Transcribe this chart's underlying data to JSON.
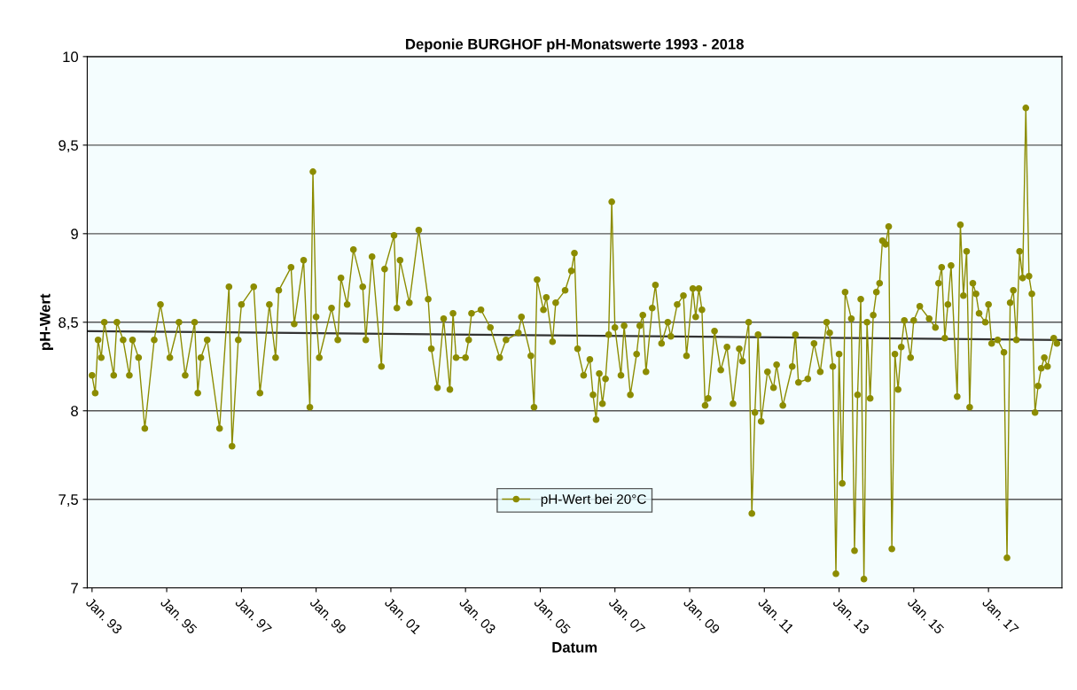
{
  "chart_data": {
    "type": "line",
    "title": "Deponie BURGHOF pH-Monatswerte 1993 - 2018",
    "xlabel": "Datum",
    "ylabel": "pH-Wert",
    "xlim": [
      "1992-11-15",
      "2018-12-20"
    ],
    "xticks": [
      {
        "value": "1993-01",
        "label": "Jan. 93"
      },
      {
        "value": "1995-01",
        "label": "Jan. 95"
      },
      {
        "value": "1997-01",
        "label": "Jan. 97"
      },
      {
        "value": "1999-01",
        "label": "Jan. 99"
      },
      {
        "value": "2001-01",
        "label": "Jan. 01"
      },
      {
        "value": "2003-01",
        "label": "Jan. 03"
      },
      {
        "value": "2005-01",
        "label": "Jan. 05"
      },
      {
        "value": "2007-01",
        "label": "Jan. 07"
      },
      {
        "value": "2009-01",
        "label": "Jan. 09"
      },
      {
        "value": "2011-01",
        "label": "Jan. 11"
      },
      {
        "value": "2013-01",
        "label": "Jan. 13"
      },
      {
        "value": "2015-01",
        "label": "Jan. 15"
      },
      {
        "value": "2017-01",
        "label": "Jan. 17"
      }
    ],
    "ylim": [
      7,
      10
    ],
    "yticks": [
      7,
      {
        "value": 7.5,
        "label": "7,5"
      },
      8,
      {
        "value": 8.5,
        "label": "8,5"
      },
      9,
      {
        "value": 9.5,
        "label": "9,5"
      },
      10
    ],
    "grid": "y",
    "legend": "bottom",
    "marker": "circle",
    "line_style": "solid",
    "series": [
      {
        "name": "pH-Wert bei 20°C",
        "color": "#8c8c00",
        "x": [
          "1993-01",
          "1993-02",
          "1993-03",
          "1993-04",
          "1993-05",
          "1993-08",
          "1993-09",
          "1993-11",
          "1994-01",
          "1994-02",
          "1994-04",
          "1994-06",
          "1994-09",
          "1994-11",
          "1995-02",
          "1995-05",
          "1995-07",
          "1995-10",
          "1995-11",
          "1995-12",
          "1996-02",
          "1996-06",
          "1996-09",
          "1996-10",
          "1996-12",
          "1997-01",
          "1997-05",
          "1997-07",
          "1997-10",
          "1997-12",
          "1998-01",
          "1998-05",
          "1998-06",
          "1998-09",
          "1998-11",
          "1998-12",
          "1999-01",
          "1999-02",
          "1999-06",
          "1999-08",
          "1999-09",
          "1999-11",
          "2000-01",
          "2000-04",
          "2000-05",
          "2000-07",
          "2000-10",
          "2000-11",
          "2001-02",
          "2001-03",
          "2001-04",
          "2001-07",
          "2001-10",
          "2002-01",
          "2002-02",
          "2002-04",
          "2002-06",
          "2002-08",
          "2002-09",
          "2002-10",
          "2003-01",
          "2003-02",
          "2003-03",
          "2003-06",
          "2003-09",
          "2003-12",
          "2004-02",
          "2004-06",
          "2004-07",
          "2004-10",
          "2004-11",
          "2004-12",
          "2005-02",
          "2005-03",
          "2005-05",
          "2005-06",
          "2005-09",
          "2005-11",
          "2005-12",
          "2006-01",
          "2006-03",
          "2006-05",
          "2006-06",
          "2006-07",
          "2006-08",
          "2006-09",
          "2006-10",
          "2006-11",
          "2006-12",
          "2007-01",
          "2007-03",
          "2007-04",
          "2007-06",
          "2007-08",
          "2007-09",
          "2007-10",
          "2007-11",
          "2008-01",
          "2008-02",
          "2008-04",
          "2008-06",
          "2008-07",
          "2008-09",
          "2008-11",
          "2008-12",
          "2009-02",
          "2009-03",
          "2009-04",
          "2009-05",
          "2009-06",
          "2009-07",
          "2009-09",
          "2009-11",
          "2010-01",
          "2010-03",
          "2010-05",
          "2010-06",
          "2010-08",
          "2010-09",
          "2010-10",
          "2010-11",
          "2010-12",
          "2011-02",
          "2011-04",
          "2011-05",
          "2011-07",
          "2011-10",
          "2011-11",
          "2011-12",
          "2012-03",
          "2012-05",
          "2012-07",
          "2012-09",
          "2012-10",
          "2012-11",
          "2012-12",
          "2013-01",
          "2013-02",
          "2013-03",
          "2013-05",
          "2013-06",
          "2013-07",
          "2013-08",
          "2013-09",
          "2013-10",
          "2013-11",
          "2013-12",
          "2014-01",
          "2014-02",
          "2014-03",
          "2014-04",
          "2014-05",
          "2014-06",
          "2014-07",
          "2014-08",
          "2014-09",
          "2014-10",
          "2014-12",
          "2015-01",
          "2015-03",
          "2015-06",
          "2015-08",
          "2015-09",
          "2015-10",
          "2015-11",
          "2015-12",
          "2016-01",
          "2016-03",
          "2016-04",
          "2016-05",
          "2016-06",
          "2016-07",
          "2016-08",
          "2016-09",
          "2016-10",
          "2016-12",
          "2017-01",
          "2017-02",
          "2017-04",
          "2017-06",
          "2017-07",
          "2017-08",
          "2017-09",
          "2017-10",
          "2017-11",
          "2017-12",
          "2018-01",
          "2018-02",
          "2018-03",
          "2018-04",
          "2018-05",
          "2018-06",
          "2018-07",
          "2018-08",
          "2018-10",
          "2018-11"
        ],
        "values": [
          8.2,
          8.1,
          8.4,
          8.3,
          8.5,
          8.2,
          8.5,
          8.4,
          8.2,
          8.4,
          8.3,
          7.9,
          8.4,
          8.6,
          8.3,
          8.5,
          8.2,
          8.5,
          8.1,
          8.3,
          8.4,
          7.9,
          8.7,
          7.8,
          8.4,
          8.6,
          8.7,
          8.1,
          8.6,
          8.3,
          8.68,
          8.81,
          8.49,
          8.85,
          8.02,
          9.35,
          8.53,
          8.3,
          8.58,
          8.4,
          8.75,
          8.6,
          8.91,
          8.7,
          8.4,
          8.87,
          8.25,
          8.8,
          8.99,
          8.58,
          8.85,
          8.61,
          9.02,
          8.63,
          8.35,
          8.13,
          8.52,
          8.12,
          8.55,
          8.3,
          8.3,
          8.4,
          8.55,
          8.57,
          8.47,
          8.3,
          8.4,
          8.44,
          8.53,
          8.31,
          8.02,
          8.74,
          8.57,
          8.64,
          8.39,
          8.61,
          8.68,
          8.79,
          8.89,
          8.35,
          8.2,
          8.29,
          8.09,
          7.95,
          8.21,
          8.04,
          8.18,
          8.43,
          9.18,
          8.47,
          8.2,
          8.48,
          8.09,
          8.32,
          8.48,
          8.54,
          8.22,
          8.58,
          8.71,
          8.38,
          8.5,
          8.42,
          8.6,
          8.65,
          8.31,
          8.69,
          8.53,
          8.69,
          8.57,
          8.03,
          8.07,
          8.45,
          8.23,
          8.36,
          8.04,
          8.35,
          8.28,
          8.5,
          7.42,
          7.99,
          8.43,
          7.94,
          8.22,
          8.13,
          8.26,
          8.03,
          8.25,
          8.43,
          8.16,
          8.18,
          8.38,
          8.22,
          8.5,
          8.44,
          8.25,
          7.08,
          8.32,
          7.59,
          8.67,
          8.52,
          7.21,
          8.09,
          8.63,
          7.05,
          8.5,
          8.07,
          8.54,
          8.67,
          8.72,
          8.96,
          8.94,
          9.04,
          7.22,
          8.32,
          8.12,
          8.36,
          8.51,
          8.3,
          8.51,
          8.59,
          8.52,
          8.47,
          8.72,
          8.81,
          8.41,
          8.6,
          8.82,
          8.08,
          9.05,
          8.65,
          8.9,
          8.02,
          8.72,
          8.66,
          8.55,
          8.5,
          8.6,
          8.38,
          8.4,
          8.33,
          7.17,
          8.61,
          8.68,
          8.4,
          8.9,
          8.75,
          9.71,
          8.76,
          8.66,
          7.99,
          8.14,
          8.24,
          8.3,
          8.25,
          8.41,
          8.38
        ]
      },
      {
        "type": "line",
        "color": "#333333",
        "marker": "none",
        "x": [
          "1992-11-15",
          "2018-12-20"
        ],
        "values": [
          8.45,
          8.4
        ]
      }
    ]
  }
}
